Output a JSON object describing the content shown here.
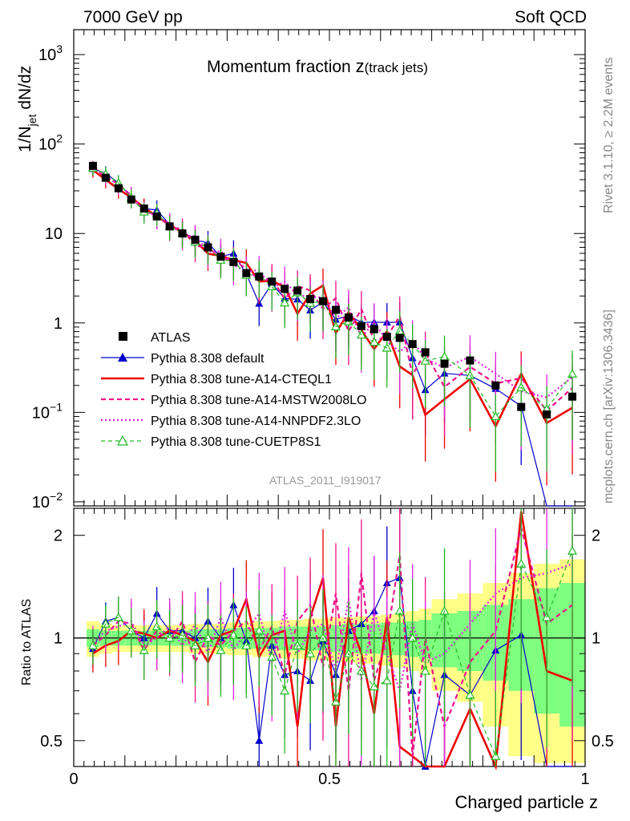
{
  "header": {
    "left": "7000 GeV pp",
    "right": "Soft QCD"
  },
  "title_main": "Momentum fraction ",
  "title_var": "z",
  "title_sub": "(track jets)",
  "ylabel_upper": {
    "a": "1/N",
    "sub": "jet",
    "b": " dN/dz"
  },
  "ylabel_lower": "Ratio to ATLAS",
  "xlabel": "Charged particle z",
  "side_top": "Rivet 3.1.10, ≥ 2.2M events",
  "side_bottom": "mcplots.cern.ch [arXiv:1306.3436]",
  "analysis_id": "ATLAS_2011_I919017",
  "ytick_upper": [
    {
      "v": 1000,
      "base": "10",
      "exp": "3"
    },
    {
      "v": 100,
      "base": "10",
      "exp": "2"
    },
    {
      "v": 10,
      "base": "10",
      "exp": ""
    },
    {
      "v": 1,
      "base": "1",
      "exp": ""
    },
    {
      "v": 0.1,
      "base": "10",
      "exp": "−1"
    },
    {
      "v": 0.01,
      "base": "10",
      "exp": "−2"
    }
  ],
  "ytick_lower": [
    "0.5",
    "1",
    "2"
  ],
  "xtick": [
    "0",
    "0.5",
    "1"
  ],
  "colors": {
    "data": "#000000",
    "default": "#0000cc",
    "cteql1": "#ee0000",
    "mstw": "#ee1188",
    "nnpdf": "#dd22dd",
    "cuetp": "#22bb22",
    "band_inner": "#7fff7f",
    "band_outer": "#ffff88"
  },
  "chart_data": {
    "type": "scatter",
    "upper": {
      "ylog": true,
      "ylim": [
        0.009,
        1900
      ],
      "xlim": [
        0,
        1
      ]
    },
    "lower": {
      "ylog": true,
      "ylim": [
        0.42,
        2.4
      ],
      "xlim": [
        0,
        1
      ]
    },
    "x": [
      0.0375,
      0.0625,
      0.0875,
      0.1125,
      0.1375,
      0.1625,
      0.1875,
      0.2125,
      0.2375,
      0.2625,
      0.2875,
      0.3125,
      0.3375,
      0.3625,
      0.3875,
      0.4125,
      0.4375,
      0.4625,
      0.4875,
      0.5125,
      0.5375,
      0.5625,
      0.5875,
      0.6125,
      0.6375,
      0.6625,
      0.6875,
      0.725,
      0.775,
      0.825,
      0.875,
      0.925,
      0.975
    ],
    "legend": [
      {
        "key": "data",
        "label": "ATLAS",
        "style": "marker-square"
      },
      {
        "key": "default",
        "label": "Pythia 8.308 default",
        "style": "solid-triangle"
      },
      {
        "key": "cteql1",
        "label": "Pythia 8.308 tune-A14-CTEQL1",
        "style": "solid-thick"
      },
      {
        "key": "mstw",
        "label": "Pythia 8.308 tune-A14-MSTW2008LO",
        "style": "dashed"
      },
      {
        "key": "nnpdf",
        "label": "Pythia 8.308 tune-A14-NNPDF2.3LO",
        "style": "dotted"
      },
      {
        "key": "cuetp",
        "label": "Pythia 8.308 tune-CUETP8S1",
        "style": "dashed-open-triangle"
      }
    ],
    "series": [
      {
        "key": "data",
        "name": "ATLAS",
        "values": [
          57,
          42,
          32,
          24,
          19,
          15.5,
          12,
          10,
          8.5,
          7,
          5.5,
          4.8,
          3.6,
          3.3,
          2.9,
          2.4,
          2.3,
          1.85,
          1.75,
          1.4,
          1.15,
          0.92,
          0.85,
          0.7,
          0.68,
          0.58,
          0.47,
          0.35,
          0.38,
          0.2,
          0.115,
          0.095,
          0.15
        ]
      },
      {
        "key": "default",
        "name": "Pythia 8.308 default",
        "ratio": [
          0.93,
          1.12,
          1.15,
          1.05,
          1.0,
          1.18,
          1.05,
          1.05,
          1.0,
          1.12,
          1.0,
          1.25,
          0.98,
          0.5,
          0.95,
          0.78,
          0.8,
          0.75,
          0.98,
          0.78,
          1.05,
          1.1,
          1.2,
          1.45,
          1.5,
          0.7,
          0.38,
          0.78,
          0.68,
          0.92,
          1.02,
          0.0,
          0.0
        ]
      },
      {
        "key": "cteql1",
        "name": "Pythia 8.308 tune-A14-CTEQL1",
        "ratio": [
          0.9,
          0.95,
          0.98,
          1.05,
          1.03,
          1.0,
          1.05,
          1.02,
          0.98,
          0.85,
          1.02,
          1.05,
          1.3,
          0.88,
          1.02,
          1.05,
          0.55,
          1.15,
          1.5,
          0.55,
          1.15,
          0.9,
          0.6,
          1.15,
          0.48,
          0.45,
          0.2,
          0.4,
          0.62,
          0.35,
          2.35,
          0.8,
          0.75
        ]
      },
      {
        "key": "mstw",
        "name": "Pythia 8.308 tune-A14-MSTW2008LO",
        "ratio": [
          0.95,
          1.02,
          1.12,
          1.1,
          0.92,
          1.05,
          0.98,
          1.12,
          0.85,
          1.02,
          0.95,
          1.05,
          1.12,
          0.92,
          1.08,
          0.78,
          1.12,
          1.25,
          0.82,
          1.35,
          0.7,
          1.55,
          0.75,
          1.0,
          1.75,
          0.45,
          1.0,
          0.55,
          0.85,
          1.05,
          2.1,
          1.1,
          1.25
        ]
      },
      {
        "key": "nnpdf",
        "name": "Pythia 8.308 tune-A14-NNPDF2.3LO",
        "ratio": [
          0.97,
          1.05,
          1.08,
          1.12,
          0.95,
          1.0,
          1.08,
          0.95,
          1.1,
          0.9,
          1.15,
          0.92,
          1.05,
          1.18,
          0.85,
          1.2,
          0.9,
          1.05,
          1.1,
          0.8,
          1.3,
          0.75,
          1.2,
          0.9,
          0.7,
          1.1,
          0.85,
          0.9,
          1.1,
          1.35,
          1.5,
          1.55,
          1.65
        ]
      },
      {
        "key": "cuetp",
        "name": "Pythia 8.308 tune-CUETP8S1",
        "ratio": [
          0.95,
          1.1,
          1.15,
          1.05,
          0.92,
          1.08,
          1.0,
          1.02,
          0.95,
          1.0,
          0.92,
          1.02,
          0.95,
          1.05,
          0.88,
          0.7,
          0.95,
          0.9,
          1.0,
          0.65,
          0.9,
          0.8,
          0.72,
          0.75,
          1.2,
          1.0,
          0.8,
          1.2,
          0.68,
          0.45,
          1.65,
          1.15,
          1.8
        ]
      }
    ],
    "band_inner": [
      0.06,
      0.05,
      0.05,
      0.05,
      0.05,
      0.05,
      0.05,
      0.05,
      0.06,
      0.06,
      0.06,
      0.07,
      0.07,
      0.07,
      0.07,
      0.08,
      0.08,
      0.08,
      0.08,
      0.09,
      0.1,
      0.1,
      0.1,
      0.11,
      0.11,
      0.12,
      0.13,
      0.18,
      0.2,
      0.25,
      0.3,
      0.4,
      0.45
    ],
    "band_outer": [
      0.12,
      0.1,
      0.09,
      0.09,
      0.09,
      0.09,
      0.09,
      0.09,
      0.1,
      0.1,
      0.1,
      0.11,
      0.11,
      0.12,
      0.12,
      0.13,
      0.13,
      0.14,
      0.14,
      0.15,
      0.15,
      0.16,
      0.16,
      0.17,
      0.18,
      0.2,
      0.22,
      0.3,
      0.35,
      0.45,
      0.55,
      0.65,
      0.7
    ]
  }
}
